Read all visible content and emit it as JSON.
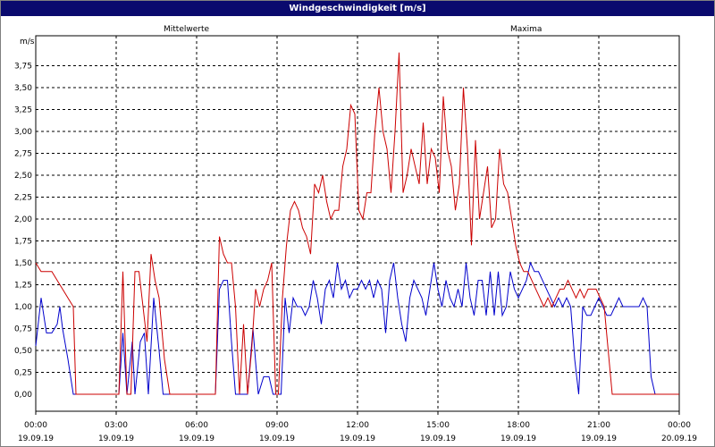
{
  "window": {
    "title": "Windgeschwindigkeit [m/s]"
  },
  "chart_data": {
    "type": "line",
    "title": "Windgeschwindigkeit [m/s]",
    "ylabel": "m/s",
    "ylim": [
      0,
      4.0
    ],
    "x_unit": "hours",
    "xlim": [
      0,
      24
    ],
    "grid": true,
    "y_ticks": [
      "0,00",
      "0,25",
      "0,50",
      "0,75",
      "1,00",
      "1,25",
      "1,50",
      "1,75",
      "2,00",
      "2,25",
      "2,50",
      "2,75",
      "3,00",
      "3,25",
      "3,50",
      "3,75"
    ],
    "x_ticks": [
      {
        "time": "00:00",
        "date": "19.09.19"
      },
      {
        "time": "03:00",
        "date": "19.09.19"
      },
      {
        "time": "06:00",
        "date": "19.09.19"
      },
      {
        "time": "09:00",
        "date": "19.09.19"
      },
      {
        "time": "12:00",
        "date": "19.09.19"
      },
      {
        "time": "15:00",
        "date": "19.09.19"
      },
      {
        "time": "18:00",
        "date": "19.09.19"
      },
      {
        "time": "21:00",
        "date": "19.09.19"
      },
      {
        "time": "00:00",
        "date": "20.09.19"
      }
    ],
    "series": [
      {
        "name": "Mittelwerte",
        "color": "#0000cc",
        "points": [
          [
            0.0,
            0.55
          ],
          [
            0.2,
            1.1
          ],
          [
            0.4,
            0.7
          ],
          [
            0.6,
            0.7
          ],
          [
            0.8,
            0.8
          ],
          [
            0.9,
            1.0
          ],
          [
            1.0,
            0.75
          ],
          [
            1.2,
            0.4
          ],
          [
            1.4,
            0.0
          ],
          [
            2.0,
            0.0
          ],
          [
            2.6,
            0.0
          ],
          [
            3.1,
            0.0
          ],
          [
            3.25,
            0.7
          ],
          [
            3.4,
            0.0
          ],
          [
            3.6,
            0.6
          ],
          [
            3.7,
            0.0
          ],
          [
            3.9,
            0.6
          ],
          [
            4.05,
            0.7
          ],
          [
            4.2,
            0.0
          ],
          [
            4.4,
            1.1
          ],
          [
            4.6,
            0.5
          ],
          [
            4.75,
            0.0
          ],
          [
            5.0,
            0.0
          ],
          [
            6.0,
            0.0
          ],
          [
            6.7,
            0.0
          ],
          [
            6.85,
            1.2
          ],
          [
            7.0,
            1.3
          ],
          [
            7.15,
            1.3
          ],
          [
            7.3,
            0.6
          ],
          [
            7.45,
            0.0
          ],
          [
            7.6,
            0.0
          ],
          [
            7.75,
            0.0
          ],
          [
            7.9,
            0.0
          ],
          [
            8.1,
            0.75
          ],
          [
            8.3,
            0.0
          ],
          [
            8.5,
            0.2
          ],
          [
            8.7,
            0.2
          ],
          [
            8.85,
            0.0
          ],
          [
            9.0,
            0.0
          ],
          [
            9.15,
            0.0
          ],
          [
            9.3,
            1.1
          ],
          [
            9.45,
            0.7
          ],
          [
            9.6,
            1.1
          ],
          [
            9.75,
            1.0
          ],
          [
            9.9,
            1.0
          ],
          [
            10.05,
            0.9
          ],
          [
            10.2,
            1.0
          ],
          [
            10.35,
            1.3
          ],
          [
            10.5,
            1.1
          ],
          [
            10.65,
            0.8
          ],
          [
            10.8,
            1.2
          ],
          [
            10.95,
            1.3
          ],
          [
            11.1,
            1.1
          ],
          [
            11.25,
            1.5
          ],
          [
            11.4,
            1.2
          ],
          [
            11.55,
            1.3
          ],
          [
            11.7,
            1.1
          ],
          [
            11.85,
            1.2
          ],
          [
            12.0,
            1.2
          ],
          [
            12.15,
            1.3
          ],
          [
            12.3,
            1.2
          ],
          [
            12.45,
            1.3
          ],
          [
            12.6,
            1.1
          ],
          [
            12.75,
            1.3
          ],
          [
            12.9,
            1.2
          ],
          [
            13.05,
            0.7
          ],
          [
            13.2,
            1.3
          ],
          [
            13.35,
            1.5
          ],
          [
            13.5,
            1.1
          ],
          [
            13.65,
            0.8
          ],
          [
            13.8,
            0.6
          ],
          [
            13.95,
            1.1
          ],
          [
            14.1,
            1.3
          ],
          [
            14.25,
            1.2
          ],
          [
            14.4,
            1.1
          ],
          [
            14.55,
            0.9
          ],
          [
            14.7,
            1.2
          ],
          [
            14.85,
            1.5
          ],
          [
            15.0,
            1.2
          ],
          [
            15.15,
            1.0
          ],
          [
            15.3,
            1.3
          ],
          [
            15.45,
            1.1
          ],
          [
            15.6,
            1.0
          ],
          [
            15.75,
            1.2
          ],
          [
            15.9,
            1.0
          ],
          [
            16.05,
            1.5
          ],
          [
            16.2,
            1.1
          ],
          [
            16.35,
            0.9
          ],
          [
            16.5,
            1.3
          ],
          [
            16.65,
            1.3
          ],
          [
            16.8,
            0.9
          ],
          [
            16.95,
            1.4
          ],
          [
            17.1,
            0.9
          ],
          [
            17.25,
            1.4
          ],
          [
            17.4,
            0.9
          ],
          [
            17.55,
            1.0
          ],
          [
            17.7,
            1.4
          ],
          [
            17.85,
            1.2
          ],
          [
            18.0,
            1.1
          ],
          [
            18.15,
            1.2
          ],
          [
            18.3,
            1.3
          ],
          [
            18.45,
            1.5
          ],
          [
            18.6,
            1.4
          ],
          [
            18.75,
            1.4
          ],
          [
            18.9,
            1.3
          ],
          [
            19.05,
            1.2
          ],
          [
            19.2,
            1.1
          ],
          [
            19.35,
            1.0
          ],
          [
            19.5,
            1.1
          ],
          [
            19.65,
            1.0
          ],
          [
            19.8,
            1.1
          ],
          [
            19.95,
            1.0
          ],
          [
            20.1,
            0.4
          ],
          [
            20.25,
            0.0
          ],
          [
            20.4,
            1.0
          ],
          [
            20.55,
            0.9
          ],
          [
            20.7,
            0.9
          ],
          [
            20.85,
            1.0
          ],
          [
            21.0,
            1.1
          ],
          [
            21.15,
            1.0
          ],
          [
            21.3,
            0.9
          ],
          [
            21.45,
            0.9
          ],
          [
            21.6,
            1.0
          ],
          [
            21.75,
            1.1
          ],
          [
            21.9,
            1.0
          ],
          [
            22.05,
            1.0
          ],
          [
            22.2,
            1.0
          ],
          [
            22.35,
            1.0
          ],
          [
            22.5,
            1.0
          ],
          [
            22.65,
            1.1
          ],
          [
            22.8,
            1.0
          ],
          [
            22.95,
            0.2
          ],
          [
            23.1,
            0.0
          ],
          [
            23.5,
            0.0
          ],
          [
            24.0,
            0.0
          ]
        ]
      },
      {
        "name": "Maxima",
        "color": "#cc0000",
        "points": [
          [
            0.0,
            1.5
          ],
          [
            0.2,
            1.4
          ],
          [
            0.4,
            1.4
          ],
          [
            0.6,
            1.4
          ],
          [
            0.8,
            1.3
          ],
          [
            1.0,
            1.2
          ],
          [
            1.2,
            1.1
          ],
          [
            1.4,
            1.0
          ],
          [
            1.5,
            0.0
          ],
          [
            2.0,
            0.0
          ],
          [
            2.6,
            0.0
          ],
          [
            3.1,
            0.0
          ],
          [
            3.25,
            1.4
          ],
          [
            3.4,
            0.0
          ],
          [
            3.55,
            0.0
          ],
          [
            3.7,
            1.4
          ],
          [
            3.85,
            1.4
          ],
          [
            4.0,
            1.0
          ],
          [
            4.15,
            0.6
          ],
          [
            4.3,
            1.6
          ],
          [
            4.45,
            1.3
          ],
          [
            4.6,
            1.1
          ],
          [
            4.8,
            0.4
          ],
          [
            5.0,
            0.0
          ],
          [
            6.0,
            0.0
          ],
          [
            6.7,
            0.0
          ],
          [
            6.85,
            1.8
          ],
          [
            7.0,
            1.6
          ],
          [
            7.15,
            1.5
          ],
          [
            7.3,
            1.5
          ],
          [
            7.45,
            1.0
          ],
          [
            7.6,
            0.0
          ],
          [
            7.75,
            0.8
          ],
          [
            7.9,
            0.0
          ],
          [
            8.05,
            0.5
          ],
          [
            8.2,
            1.2
          ],
          [
            8.35,
            1.0
          ],
          [
            8.5,
            1.2
          ],
          [
            8.65,
            1.3
          ],
          [
            8.8,
            1.5
          ],
          [
            8.95,
            0.0
          ],
          [
            9.05,
            0.0
          ],
          [
            9.2,
            1.1
          ],
          [
            9.35,
            1.7
          ],
          [
            9.5,
            2.1
          ],
          [
            9.65,
            2.2
          ],
          [
            9.8,
            2.1
          ],
          [
            9.95,
            1.9
          ],
          [
            10.1,
            1.8
          ],
          [
            10.25,
            1.6
          ],
          [
            10.4,
            2.4
          ],
          [
            10.55,
            2.3
          ],
          [
            10.7,
            2.5
          ],
          [
            10.85,
            2.2
          ],
          [
            11.0,
            2.0
          ],
          [
            11.15,
            2.1
          ],
          [
            11.3,
            2.1
          ],
          [
            11.45,
            2.6
          ],
          [
            11.6,
            2.8
          ],
          [
            11.75,
            3.3
          ],
          [
            11.9,
            3.2
          ],
          [
            12.05,
            2.1
          ],
          [
            12.2,
            2.0
          ],
          [
            12.35,
            2.3
          ],
          [
            12.5,
            2.3
          ],
          [
            12.65,
            3.0
          ],
          [
            12.8,
            3.5
          ],
          [
            12.95,
            3.0
          ],
          [
            13.1,
            2.8
          ],
          [
            13.25,
            2.3
          ],
          [
            13.4,
            3.0
          ],
          [
            13.55,
            3.9
          ],
          [
            13.7,
            2.3
          ],
          [
            13.85,
            2.5
          ],
          [
            14.0,
            2.8
          ],
          [
            14.15,
            2.6
          ],
          [
            14.3,
            2.4
          ],
          [
            14.45,
            3.1
          ],
          [
            14.6,
            2.4
          ],
          [
            14.75,
            2.8
          ],
          [
            14.9,
            2.7
          ],
          [
            15.05,
            2.3
          ],
          [
            15.2,
            3.4
          ],
          [
            15.35,
            2.8
          ],
          [
            15.5,
            2.6
          ],
          [
            15.65,
            2.1
          ],
          [
            15.8,
            2.4
          ],
          [
            15.95,
            3.5
          ],
          [
            16.1,
            2.8
          ],
          [
            16.25,
            1.7
          ],
          [
            16.4,
            2.9
          ],
          [
            16.55,
            2.0
          ],
          [
            16.7,
            2.3
          ],
          [
            16.85,
            2.6
          ],
          [
            17.0,
            1.9
          ],
          [
            17.15,
            2.0
          ],
          [
            17.3,
            2.8
          ],
          [
            17.45,
            2.4
          ],
          [
            17.6,
            2.3
          ],
          [
            17.75,
            2.0
          ],
          [
            17.9,
            1.7
          ],
          [
            18.05,
            1.5
          ],
          [
            18.2,
            1.4
          ],
          [
            18.35,
            1.4
          ],
          [
            18.5,
            1.3
          ],
          [
            18.65,
            1.2
          ],
          [
            18.8,
            1.1
          ],
          [
            18.95,
            1.0
          ],
          [
            19.1,
            1.1
          ],
          [
            19.25,
            1.0
          ],
          [
            19.4,
            1.1
          ],
          [
            19.55,
            1.2
          ],
          [
            19.7,
            1.2
          ],
          [
            19.85,
            1.3
          ],
          [
            20.0,
            1.2
          ],
          [
            20.15,
            1.1
          ],
          [
            20.3,
            1.2
          ],
          [
            20.45,
            1.1
          ],
          [
            20.6,
            1.2
          ],
          [
            20.75,
            1.2
          ],
          [
            20.9,
            1.2
          ],
          [
            21.05,
            1.1
          ],
          [
            21.2,
            1.0
          ],
          [
            21.35,
            0.5
          ],
          [
            21.5,
            0.0
          ],
          [
            22.0,
            0.0
          ],
          [
            23.0,
            0.0
          ],
          [
            24.0,
            0.0
          ]
        ]
      }
    ]
  }
}
